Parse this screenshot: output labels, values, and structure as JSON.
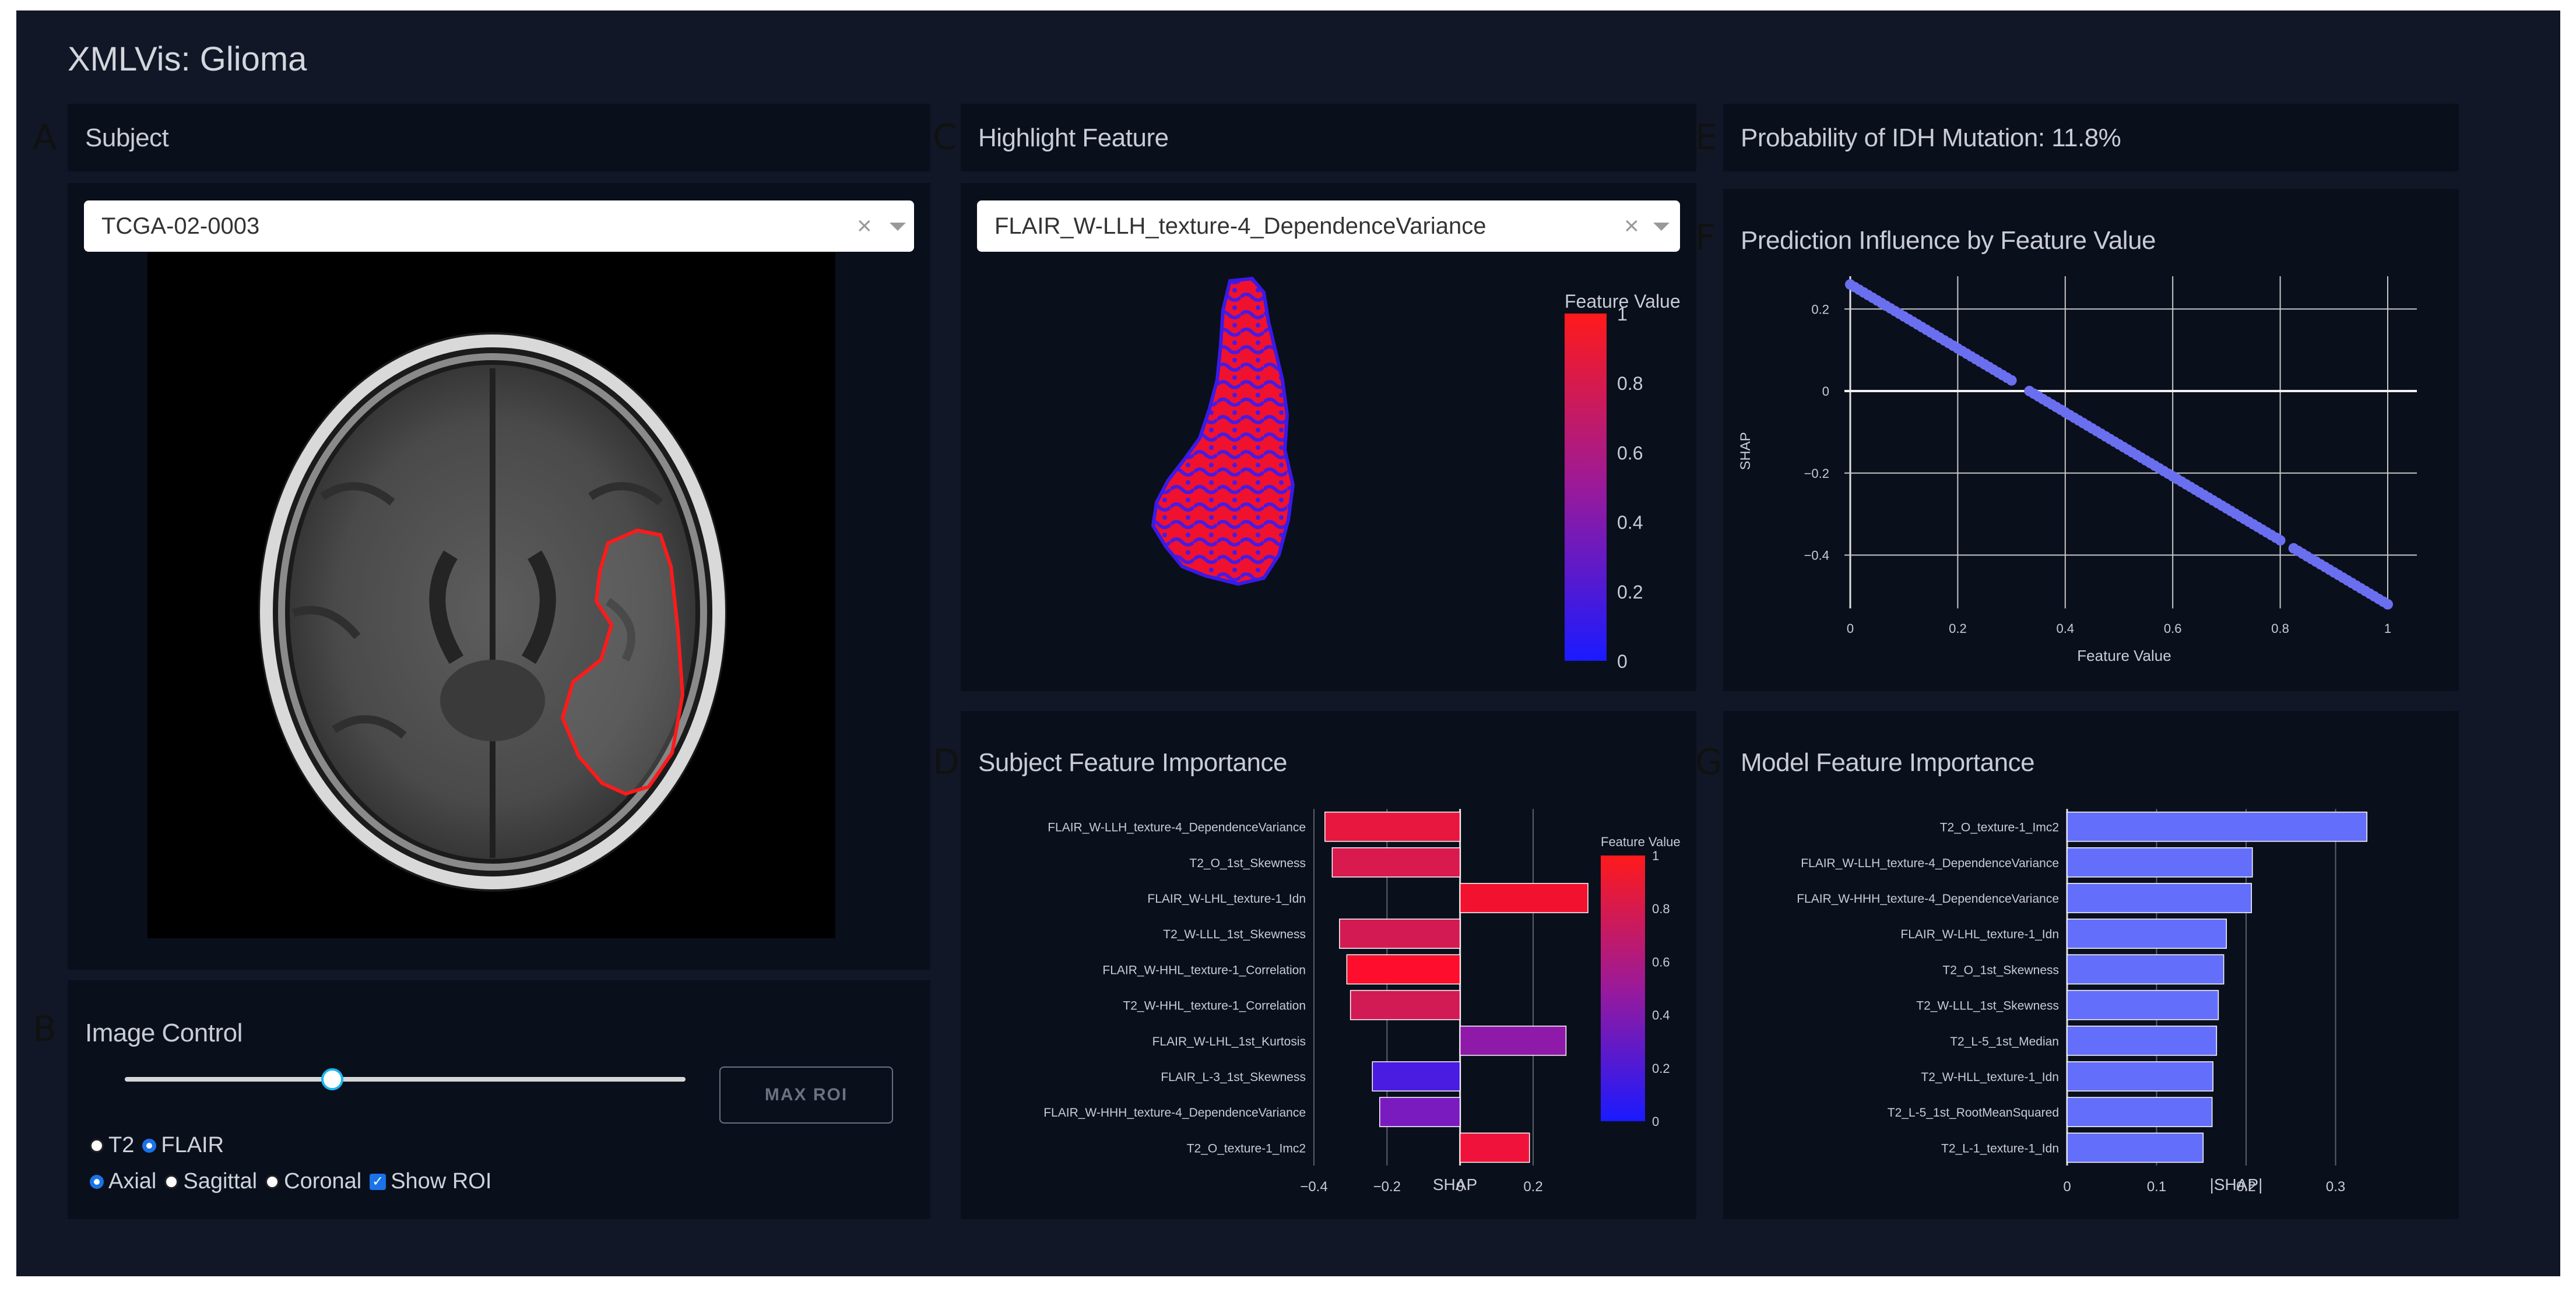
{
  "app": {
    "title": "XMLVis: Glioma"
  },
  "panel_letters": {
    "a": "A",
    "b": "B",
    "c": "C",
    "d": "D",
    "e": "E",
    "f": "F",
    "g": "G"
  },
  "subject": {
    "title": "Subject",
    "dropdown_value": "TCGA-02-0003",
    "clear_glyph": "×"
  },
  "image_control": {
    "title": "Image Control",
    "slider_level": 0.37,
    "max_roi_label": "MAX ROI",
    "modality": {
      "options": [
        "T2",
        "FLAIR"
      ],
      "selected": "FLAIR"
    },
    "view": {
      "options": [
        "Axial",
        "Sagittal",
        "Coronal"
      ],
      "selected": "Axial"
    },
    "show_roi_label": "Show ROI",
    "show_roi_checked": true,
    "check_glyph": "✓"
  },
  "highlight_feature": {
    "title": "Highlight Feature",
    "dropdown_value": "FLAIR_W-LLH_texture-4_DependenceVariance",
    "clear_glyph": "×",
    "colorbar": {
      "title": "Feature Value",
      "ticks": [
        "1",
        "0.8",
        "0.6",
        "0.4",
        "0.2",
        "0"
      ],
      "top_color": "#ff1a1a",
      "bottom_color": "#1a1aff"
    }
  },
  "probability": {
    "text": "Probability of IDH Mutation: 11.8%"
  },
  "prediction_influence": {
    "title": "Prediction Influence by Feature Value",
    "chart_data": {
      "type": "scatter",
      "xlabel": "Feature Value",
      "ylabel": "SHAP",
      "xlim": [
        0,
        1
      ],
      "ylim": [
        -0.53,
        0.28
      ],
      "x_ticks": [
        "0",
        "0.2",
        "0.4",
        "0.6",
        "0.8",
        "1"
      ],
      "y_ticks": [
        "0.2",
        "0",
        "−0.2",
        "−0.4"
      ],
      "x_tick_values": [
        0,
        0.2,
        0.4,
        0.6,
        0.8,
        1
      ],
      "y_tick_values": [
        0.2,
        0,
        -0.2,
        -0.4
      ],
      "grid": true,
      "series": [
        {
          "values_start": [
            0,
            0.26
          ],
          "values_end": [
            1,
            -0.52
          ],
          "color": "#6a6ff0"
        }
      ]
    }
  },
  "subject_importance": {
    "title": "Subject Feature Importance",
    "chart_data": {
      "type": "bar",
      "orientation": "horizontal",
      "xlabel": "SHAP",
      "xlim": [
        -0.4,
        0.35
      ],
      "x_ticks": [
        "−0.4",
        "−0.2",
        "0",
        "0.2"
      ],
      "x_tick_values": [
        -0.4,
        -0.2,
        0,
        0.2
      ],
      "categories": [
        "FLAIR_W-LLH_texture-4_DependenceVariance",
        "T2_O_1st_Skewness",
        "FLAIR_W-LHL_texture-1_Idn",
        "T2_W-LLL_1st_Skewness",
        "FLAIR_W-HHL_texture-1_Correlation",
        "T2_W-HHL_texture-1_Correlation",
        "FLAIR_W-LHL_1st_Kurtosis",
        "FLAIR_L-3_1st_Skewness",
        "FLAIR_W-HHH_texture-4_DependenceVariance",
        "T2_O_texture-1_Imc2"
      ],
      "values": [
        -0.37,
        -0.35,
        0.35,
        -0.33,
        -0.31,
        -0.3,
        0.29,
        -0.24,
        -0.22,
        0.19
      ],
      "colors": [
        "#e8173f",
        "#d81a4e",
        "#f2112e",
        "#d31a52",
        "#ff0d2c",
        "#d21a55",
        "#8f19a8",
        "#4a1be0",
        "#7a1bc0",
        "#f0123a"
      ],
      "colorbar": {
        "title": "Feature Value",
        "ticks": [
          "1",
          "0.8",
          "0.6",
          "0.4",
          "0.2",
          "0"
        ]
      }
    }
  },
  "model_importance": {
    "title": "Model Feature Importance",
    "chart_data": {
      "type": "bar",
      "orientation": "horizontal",
      "xlabel": "|SHAP|",
      "xlim": [
        0,
        0.34
      ],
      "x_ticks": [
        "0",
        "0.1",
        "0.2",
        "0.3"
      ],
      "x_tick_values": [
        0,
        0.1,
        0.2,
        0.3
      ],
      "categories": [
        "T2_O_texture-1_Imc2",
        "FLAIR_W-LLH_texture-4_DependenceVariance",
        "FLAIR_W-HHH_texture-4_DependenceVariance",
        "FLAIR_W-LHL_texture-1_Idn",
        "T2_O_1st_Skewness",
        "T2_W-LLL_1st_Skewness",
        "T2_L-5_1st_Median",
        "T2_W-HLL_texture-1_Idn",
        "T2_L-5_1st_RootMeanSquared",
        "T2_L-1_texture-1_Idn"
      ],
      "values": [
        0.335,
        0.207,
        0.206,
        0.178,
        0.175,
        0.169,
        0.167,
        0.163,
        0.162,
        0.152
      ],
      "color": "#636efa"
    }
  }
}
